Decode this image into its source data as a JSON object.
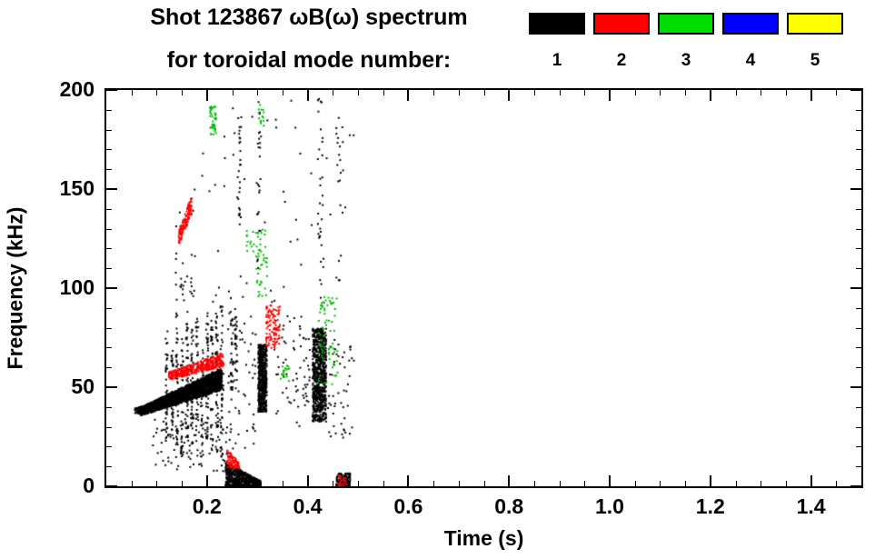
{
  "colors": {
    "background": "#ffffff",
    "foreground": "#000000"
  },
  "header": {
    "title_line1": "Shot 123867 ωB(ω) spectrum",
    "title_line2": "for toroidal mode number:"
  },
  "legend": {
    "items": [
      {
        "label": "1",
        "color": "#000000"
      },
      {
        "label": "2",
        "color": "#ff0000"
      },
      {
        "label": "3",
        "color": "#00dd00"
      },
      {
        "label": "4",
        "color": "#0000ff"
      },
      {
        "label": "5",
        "color": "#ffff00"
      }
    ]
  },
  "chart_data": {
    "type": "scatter",
    "title": "Shot 123867 ωB(ω) spectrum for toroidal mode number",
    "xlabel": "Time (s)",
    "ylabel": "Frequency (kHz)",
    "xlim": [
      0.0,
      1.5
    ],
    "ylim": [
      0,
      200
    ],
    "x_major_ticks": [
      0.2,
      0.4,
      0.6,
      0.8,
      1.0,
      1.2,
      1.4
    ],
    "x_minor_step": 0.05,
    "y_major_ticks": [
      0,
      50,
      100,
      150,
      200
    ],
    "y_minor_step": 10,
    "grid": false,
    "legend_position": "top-right",
    "seed": 1234,
    "point_size": 2,
    "modes": [
      {
        "mode": 1,
        "color": "#000000"
      },
      {
        "mode": 2,
        "color": "#ff0000"
      },
      {
        "mode": 3,
        "color": "#00bb00"
      },
      {
        "mode": 4,
        "color": "#0000ff"
      },
      {
        "mode": 5,
        "color": "#ffff00"
      }
    ],
    "features": [
      {
        "mode": 1,
        "t": [
          0.055,
          0.075
        ],
        "f_lo": [
          37,
          37
        ],
        "f_hi": [
          40,
          41
        ],
        "n": 70
      },
      {
        "mode": 1,
        "t": [
          0.065,
          0.228
        ],
        "f_lo": [
          36,
          49
        ],
        "f_hi": [
          40,
          60
        ],
        "n": 2400
      },
      {
        "mode": 1,
        "t": [
          0.09,
          0.24
        ],
        "f_lo": [
          8,
          8
        ],
        "f_hi": [
          35,
          35
        ],
        "n": 90
      },
      {
        "mode": 1,
        "t": [
          0.116,
          0.121
        ],
        "f_lo": [
          18,
          18
        ],
        "f_hi": [
          80,
          80
        ],
        "n": 45
      },
      {
        "mode": 1,
        "t": [
          0.127,
          0.131
        ],
        "f_lo": [
          25,
          25
        ],
        "f_hi": [
          70,
          70
        ],
        "n": 40
      },
      {
        "mode": 1,
        "t": [
          0.136,
          0.141
        ],
        "f_lo": [
          20,
          20
        ],
        "f_hi": [
          88,
          88
        ],
        "n": 50
      },
      {
        "mode": 1,
        "t": [
          0.146,
          0.151
        ],
        "f_lo": [
          15,
          15
        ],
        "f_hi": [
          76,
          76
        ],
        "n": 45
      },
      {
        "mode": 1,
        "t": [
          0.156,
          0.161
        ],
        "f_lo": [
          22,
          22
        ],
        "f_hi": [
          90,
          90
        ],
        "n": 50
      },
      {
        "mode": 1,
        "t": [
          0.166,
          0.171
        ],
        "f_lo": [
          18,
          18
        ],
        "f_hi": [
          80,
          80
        ],
        "n": 40
      },
      {
        "mode": 1,
        "t": [
          0.176,
          0.181
        ],
        "f_lo": [
          24,
          24
        ],
        "f_hi": [
          88,
          88
        ],
        "n": 45
      },
      {
        "mode": 1,
        "t": [
          0.186,
          0.191
        ],
        "f_lo": [
          15,
          15
        ],
        "f_hi": [
          70,
          70
        ],
        "n": 40
      },
      {
        "mode": 1,
        "t": [
          0.196,
          0.201
        ],
        "f_lo": [
          20,
          20
        ],
        "f_hi": [
          90,
          90
        ],
        "n": 50
      },
      {
        "mode": 1,
        "t": [
          0.205,
          0.21
        ],
        "f_lo": [
          15,
          15
        ],
        "f_hi": [
          85,
          85
        ],
        "n": 45
      },
      {
        "mode": 1,
        "t": [
          0.215,
          0.22
        ],
        "f_lo": [
          18,
          18
        ],
        "f_hi": [
          88,
          88
        ],
        "n": 45
      },
      {
        "mode": 1,
        "t": [
          0.225,
          0.231
        ],
        "f_lo": [
          10,
          10
        ],
        "f_hi": [
          92,
          92
        ],
        "n": 55
      },
      {
        "mode": 1,
        "t": [
          0.245,
          0.25
        ],
        "f_lo": [
          48,
          48
        ],
        "f_hi": [
          90,
          90
        ],
        "n": 30
      },
      {
        "mode": 1,
        "t": [
          0.253,
          0.258
        ],
        "f_lo": [
          58,
          58
        ],
        "f_hi": [
          88,
          88
        ],
        "n": 25
      },
      {
        "mode": 1,
        "t": [
          0.3,
          0.317
        ],
        "f_lo": [
          38,
          38
        ],
        "f_hi": [
          72,
          72
        ],
        "n": 520
      },
      {
        "mode": 1,
        "t": [
          0.408,
          0.435
        ],
        "f_lo": [
          33,
          33
        ],
        "f_hi": [
          80,
          80
        ],
        "n": 750
      },
      {
        "mode": 1,
        "t": [
          0.235,
          0.305
        ],
        "f_lo": [
          0,
          0
        ],
        "f_hi": [
          13,
          3
        ],
        "n": 650
      },
      {
        "mode": 1,
        "t": [
          0.455,
          0.483
        ],
        "f_lo": [
          0,
          0
        ],
        "f_hi": [
          7,
          7
        ],
        "n": 140
      },
      {
        "mode": 1,
        "t": [
          0.13,
          0.49
        ],
        "f_lo": [
          92,
          92
        ],
        "f_hi": [
          196,
          196
        ],
        "n": 60
      },
      {
        "mode": 1,
        "t": [
          0.258,
          0.266
        ],
        "f_lo": [
          128,
          128
        ],
        "f_hi": [
          188,
          188
        ],
        "n": 25
      },
      {
        "mode": 1,
        "t": [
          0.298,
          0.306
        ],
        "f_lo": [
          108,
          108
        ],
        "f_hi": [
          196,
          196
        ],
        "n": 25
      },
      {
        "mode": 1,
        "t": [
          0.418,
          0.43
        ],
        "f_lo": [
          95,
          95
        ],
        "f_hi": [
          196,
          196
        ],
        "n": 30
      },
      {
        "mode": 1,
        "t": [
          0.455,
          0.47
        ],
        "f_lo": [
          100,
          100
        ],
        "f_hi": [
          190,
          190
        ],
        "n": 20
      },
      {
        "mode": 1,
        "t": [
          0.135,
          0.175
        ],
        "f_lo": [
          94,
          94
        ],
        "f_hi": [
          118,
          118
        ],
        "n": 25
      },
      {
        "mode": 1,
        "t": [
          0.24,
          0.295
        ],
        "f_lo": [
          18,
          18
        ],
        "f_hi": [
          90,
          90
        ],
        "n": 60
      },
      {
        "mode": 1,
        "t": [
          0.33,
          0.405
        ],
        "f_lo": [
          30,
          30
        ],
        "f_hi": [
          90,
          90
        ],
        "n": 70
      },
      {
        "mode": 1,
        "t": [
          0.435,
          0.49
        ],
        "f_lo": [
          25,
          25
        ],
        "f_hi": [
          75,
          75
        ],
        "n": 50
      },
      {
        "mode": 2,
        "t": [
          0.122,
          0.232
        ],
        "f_lo": [
          54,
          61
        ],
        "f_hi": [
          58,
          68
        ],
        "n": 380
      },
      {
        "mode": 2,
        "t": [
          0.142,
          0.168
        ],
        "f_lo": [
          122,
          138
        ],
        "f_hi": [
          130,
          147
        ],
        "n": 130
      },
      {
        "mode": 2,
        "t": [
          0.315,
          0.343
        ],
        "f_lo": [
          70,
          70
        ],
        "f_hi": [
          92,
          92
        ],
        "n": 110
      },
      {
        "mode": 2,
        "t": [
          0.237,
          0.263
        ],
        "f_lo": [
          10,
          9
        ],
        "f_hi": [
          19,
          13
        ],
        "n": 90
      },
      {
        "mode": 2,
        "t": [
          0.458,
          0.476
        ],
        "f_lo": [
          1,
          1
        ],
        "f_hi": [
          6,
          6
        ],
        "n": 20
      },
      {
        "mode": 3,
        "t": [
          0.204,
          0.217
        ],
        "f_lo": [
          178,
          178
        ],
        "f_hi": [
          193,
          193
        ],
        "n": 40
      },
      {
        "mode": 3,
        "t": [
          0.295,
          0.318
        ],
        "f_lo": [
          96,
          96
        ],
        "f_hi": [
          130,
          130
        ],
        "n": 45
      },
      {
        "mode": 3,
        "t": [
          0.42,
          0.458
        ],
        "f_lo": [
          52,
          52
        ],
        "f_hi": [
          96,
          96
        ],
        "n": 70
      },
      {
        "mode": 3,
        "t": [
          0.345,
          0.362
        ],
        "f_lo": [
          52,
          52
        ],
        "f_hi": [
          62,
          62
        ],
        "n": 18
      },
      {
        "mode": 3,
        "t": [
          0.298,
          0.313
        ],
        "f_lo": [
          182,
          182
        ],
        "f_hi": [
          196,
          196
        ],
        "n": 14
      },
      {
        "mode": 3,
        "t": [
          0.276,
          0.292
        ],
        "f_lo": [
          118,
          118
        ],
        "f_hi": [
          132,
          132
        ],
        "n": 12
      }
    ]
  }
}
